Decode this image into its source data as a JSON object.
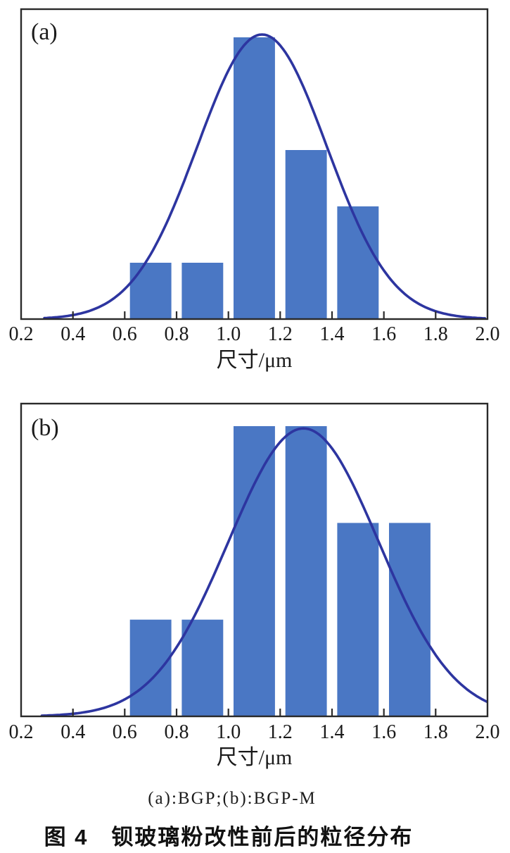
{
  "figure": {
    "caption_line": "(a):BGP;(b):BGP-M",
    "title": "图 4　钡玻璃粉改性前后的粒径分布"
  },
  "chart_data": [
    {
      "type": "bar",
      "panel_label": "(a)",
      "sample": "BGP",
      "title": "",
      "xlabel": "尺寸/μm",
      "ylabel": "",
      "xlim": [
        0.2,
        2.0
      ],
      "ylim": [
        0,
        11
      ],
      "x_tick_labels": [
        "0.2",
        "0.4",
        "0.6",
        "0.8",
        "1.0",
        "1.2",
        "1.4",
        "1.6",
        "1.8",
        "2.0"
      ],
      "x_ticks": [
        0.2,
        0.4,
        0.6,
        0.8,
        1.0,
        1.2,
        1.4,
        1.6,
        1.8,
        2.0
      ],
      "grid": false,
      "legend": false,
      "bar_centers": [
        0.7,
        0.9,
        1.1,
        1.3,
        1.5
      ],
      "bar_width": 0.16,
      "values": [
        2,
        2,
        10,
        6,
        4
      ],
      "curve": {
        "shape": "gaussian",
        "mean": 1.13,
        "sigma": 0.25,
        "peak": 10.1,
        "x_start": 0.29,
        "x_end": 1.99
      },
      "colors": {
        "bar": "#4a77c4",
        "curve": "#2d35a0",
        "axis": "#2a2a2a",
        "tick_text": "#1a1a1a"
      }
    },
    {
      "type": "bar",
      "panel_label": "(b)",
      "sample": "BGP-M",
      "title": "",
      "xlabel": "尺寸/μm",
      "ylabel": "",
      "xlim": [
        0.2,
        2.0
      ],
      "ylim": [
        0,
        9.7
      ],
      "x_tick_labels": [
        "0.2",
        "0.4",
        "0.6",
        "0.8",
        "1.0",
        "1.2",
        "1.4",
        "1.6",
        "1.8",
        "2.0"
      ],
      "x_ticks": [
        0.2,
        0.4,
        0.6,
        0.8,
        1.0,
        1.2,
        1.4,
        1.6,
        1.8,
        2.0
      ],
      "grid": false,
      "legend": false,
      "bar_centers": [
        0.7,
        0.9,
        1.1,
        1.3,
        1.5,
        1.7
      ],
      "bar_width": 0.16,
      "values": [
        3,
        3,
        9,
        9,
        6,
        6
      ],
      "curve": {
        "shape": "gaussian",
        "mean": 1.29,
        "sigma": 0.29,
        "peak": 8.93,
        "x_start": 0.28,
        "x_end": 2.0
      },
      "colors": {
        "bar": "#4a77c4",
        "curve": "#2d35a0",
        "axis": "#2a2a2a",
        "tick_text": "#1a1a1a"
      }
    }
  ]
}
